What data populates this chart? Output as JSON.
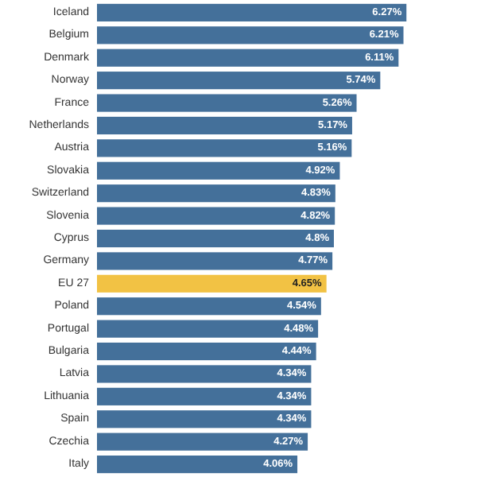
{
  "chart_data": {
    "type": "bar",
    "orientation": "horizontal",
    "categories": [
      "Iceland",
      "Belgium",
      "Denmark",
      "Norway",
      "France",
      "Netherlands",
      "Austria",
      "Slovakia",
      "Switzerland",
      "Slovenia",
      "Cyprus",
      "Germany",
      "EU 27",
      "Poland",
      "Portugal",
      "Bulgaria",
      "Latvia",
      "Lithuania",
      "Spain",
      "Czechia",
      "Italy"
    ],
    "values": [
      6.27,
      6.21,
      6.11,
      5.74,
      5.26,
      5.17,
      5.16,
      4.92,
      4.83,
      4.82,
      4.8,
      4.77,
      4.65,
      4.54,
      4.48,
      4.44,
      4.34,
      4.34,
      4.34,
      4.27,
      4.06
    ],
    "value_labels": [
      "6.27%",
      "6.21%",
      "6.11%",
      "5.74%",
      "5.26%",
      "5.17%",
      "5.16%",
      "4.92%",
      "4.83%",
      "4.82%",
      "4.8%",
      "4.77%",
      "4.65%",
      "4.54%",
      "4.48%",
      "4.44%",
      "4.34%",
      "4.34%",
      "4.34%",
      "4.27%",
      "4.06%"
    ],
    "colors": [
      "#44709a",
      "#44709a",
      "#44709a",
      "#44709a",
      "#44709a",
      "#44709a",
      "#44709a",
      "#44709a",
      "#44709a",
      "#44709a",
      "#44709a",
      "#44709a",
      "#f2c244",
      "#44709a",
      "#44709a",
      "#44709a",
      "#44709a",
      "#44709a",
      "#44709a",
      "#44709a",
      "#44709a"
    ],
    "xlim": [
      0,
      7.7
    ]
  }
}
